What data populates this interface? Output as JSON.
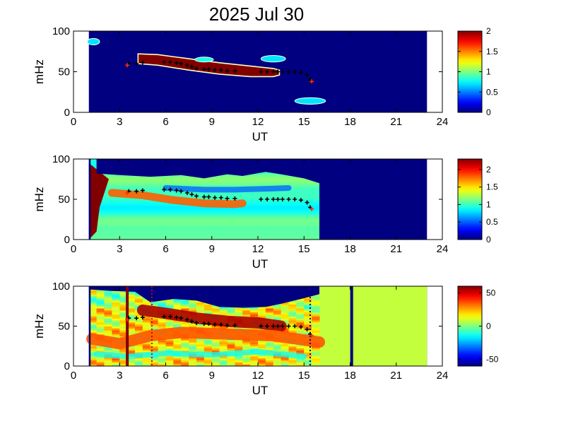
{
  "title": "2025 Jul 30",
  "chart_data": [
    {
      "type": "heatmap",
      "xlabel": "UT",
      "ylabel": "mHz",
      "xlim": [
        0,
        24
      ],
      "ylim": [
        0,
        100
      ],
      "xticks": [
        "0",
        "3",
        "6",
        "9",
        "12",
        "15",
        "18",
        "21",
        "24"
      ],
      "yticks": [
        "0",
        "50",
        "100"
      ],
      "data_x_range": [
        1,
        23
      ],
      "colorbar": {
        "min": 0,
        "max": 2,
        "ticks": [
          "0",
          "0.5",
          "1",
          "1.5",
          "2"
        ]
      },
      "features": [
        {
          "kind": "band",
          "value": 2.0,
          "x": [
            4.2,
            5.5,
            7.5,
            9.5,
            11.5,
            13.0,
            13.4
          ],
          "y_top": [
            72,
            71,
            66,
            61,
            57,
            54,
            52
          ],
          "y_bottom": [
            60,
            58,
            52,
            47,
            44,
            44,
            46
          ]
        },
        {
          "kind": "blob",
          "value": 0.7,
          "x": 1.3,
          "y": 87,
          "w": 0.4,
          "h": 4
        },
        {
          "kind": "blob",
          "value": 0.8,
          "x": 8.5,
          "y": 65,
          "w": 0.6,
          "h": 3
        },
        {
          "kind": "blob",
          "value": 0.7,
          "x": 13.0,
          "y": 66,
          "w": 0.8,
          "h": 4
        },
        {
          "kind": "blob",
          "value": 0.7,
          "x": 15.4,
          "y": 14,
          "w": 1.0,
          "h": 4
        }
      ],
      "markers": {
        "x": [
          3.6,
          4.1,
          4.5,
          5.9,
          6.3,
          6.7,
          7.0,
          7.4,
          7.7,
          8.0,
          8.5,
          8.8,
          9.2,
          9.6,
          10.0,
          10.5,
          12.2,
          12.6,
          13.0,
          13.3,
          13.6,
          14.0,
          14.4,
          14.8,
          15.2,
          15.4
        ],
        "y": [
          60,
          60,
          61,
          62,
          62,
          61,
          60,
          58,
          56,
          54,
          53,
          53,
          52,
          52,
          51,
          51,
          50,
          50,
          50,
          50,
          50,
          50,
          50,
          49,
          46,
          40
        ]
      },
      "red_markers": {
        "x": [
          3.5,
          15.5
        ],
        "y": [
          58,
          38
        ]
      }
    },
    {
      "type": "heatmap",
      "xlabel": "UT",
      "ylabel": "mHz",
      "xlim": [
        0,
        24
      ],
      "ylim": [
        0,
        100
      ],
      "xticks": [
        "0",
        "3",
        "6",
        "9",
        "12",
        "15",
        "18",
        "21",
        "24"
      ],
      "yticks": [
        "0",
        "50",
        "100"
      ],
      "data_x_range": [
        1,
        23
      ],
      "valid_x_range": [
        1,
        16
      ],
      "colorbar": {
        "min": 0,
        "max": 2.3,
        "ticks": [
          "0",
          "0.5",
          "1",
          "1.5",
          "2"
        ]
      },
      "features": [
        {
          "kind": "edge",
          "value": 2.3,
          "x": [
            1.0,
            1.7
          ],
          "y": [
            0,
            95
          ]
        },
        {
          "kind": "ridge",
          "value": 1.8,
          "x": [
            2.5,
            4.5,
            6.5,
            8.5,
            10.5,
            11.0
          ],
          "y": [
            58,
            55,
            49,
            45,
            44,
            45
          ]
        },
        {
          "kind": "trough",
          "value": 0.5,
          "x": [
            6.0,
            8.5,
            10.5,
            12.5,
            14.0
          ],
          "y": [
            64,
            62,
            62,
            63,
            64
          ]
        },
        {
          "kind": "mask_top",
          "x": [
            1.5,
            3.0,
            5.0,
            7.0,
            8.5,
            10.0,
            11.0,
            12.5,
            13.5,
            15.0,
            16.0
          ],
          "y": [
            82,
            80,
            78,
            80,
            76,
            81,
            79,
            84,
            81,
            76,
            70
          ]
        }
      ],
      "markers": {
        "x": [
          3.6,
          4.1,
          4.5,
          5.9,
          6.3,
          6.7,
          7.0,
          7.4,
          7.7,
          8.0,
          8.5,
          8.8,
          9.2,
          9.6,
          10.0,
          10.5,
          12.2,
          12.6,
          13.0,
          13.3,
          13.6,
          14.0,
          14.4,
          14.8,
          15.2,
          15.4
        ],
        "y": [
          60,
          60,
          61,
          62,
          62,
          61,
          60,
          58,
          56,
          54,
          53,
          53,
          52,
          52,
          51,
          51,
          50,
          50,
          50,
          50,
          50,
          50,
          50,
          49,
          46,
          40
        ]
      },
      "red_markers": {
        "x": [
          3.5,
          15.5
        ],
        "y": [
          58,
          38
        ]
      }
    },
    {
      "type": "heatmap",
      "xlabel": "UT",
      "ylabel": "mHz",
      "xlim": [
        0,
        24
      ],
      "ylim": [
        0,
        100
      ],
      "xticks": [
        "0",
        "3",
        "6",
        "9",
        "12",
        "15",
        "18",
        "21",
        "24"
      ],
      "yticks": [
        "0",
        "50",
        "100"
      ],
      "data_x_range": [
        1,
        23
      ],
      "valid_x_range": [
        1,
        16
      ],
      "colorbar": {
        "min": -60,
        "max": 60,
        "ticks": [
          "50",
          "0",
          "-50"
        ]
      },
      "fill_after_valid": 8,
      "features": [
        {
          "kind": "mask_top",
          "x": [
            1.0,
            2.5,
            4.0,
            5.0,
            6.5,
            8.0,
            9.5,
            11.0,
            12.5,
            13.5,
            15.0,
            16.0
          ],
          "y": [
            96,
            94,
            93,
            80,
            84,
            82,
            74,
            73,
            74,
            78,
            85,
            90
          ]
        },
        {
          "kind": "ridge",
          "value": 55,
          "x": [
            4.5,
            6.0,
            8.0,
            10.0,
            12.0,
            13.5
          ],
          "y": [
            70,
            66,
            60,
            56,
            54,
            50
          ]
        },
        {
          "kind": "ridge",
          "value": 35,
          "x": [
            1.2,
            3.0,
            5.0,
            7.0,
            10.0,
            13.0,
            16.0
          ],
          "y": [
            34,
            28,
            38,
            42,
            40,
            38,
            30
          ]
        },
        {
          "kind": "trough",
          "value": -15,
          "x": [
            1.5,
            3.5,
            6.0,
            9.0,
            12.0,
            15.0
          ],
          "y": [
            15,
            12,
            16,
            14,
            18,
            12
          ]
        }
      ],
      "vlines": [
        {
          "x": 3.5,
          "value": 60,
          "style": "solid"
        },
        {
          "x": 5.1,
          "value": 50,
          "style": "dotted"
        },
        {
          "x": 15.4,
          "value": -60,
          "style": "dotted"
        },
        {
          "x": 18.1,
          "value": -60,
          "style": "solid"
        }
      ],
      "markers": {
        "x": [
          3.6,
          4.1,
          4.5,
          5.9,
          6.3,
          6.7,
          7.0,
          7.4,
          7.7,
          8.0,
          8.5,
          8.8,
          9.2,
          9.6,
          10.0,
          10.5,
          12.2,
          12.6,
          13.0,
          13.3,
          13.6,
          14.0,
          14.4,
          14.8,
          15.2,
          15.4
        ],
        "y": [
          60,
          60,
          61,
          62,
          62,
          61,
          60,
          58,
          56,
          54,
          53,
          53,
          52,
          52,
          51,
          51,
          50,
          50,
          50,
          50,
          50,
          50,
          50,
          49,
          46,
          40
        ]
      },
      "red_markers": {
        "x": [
          3.5,
          15.5
        ],
        "y": [
          58,
          38
        ]
      }
    }
  ]
}
